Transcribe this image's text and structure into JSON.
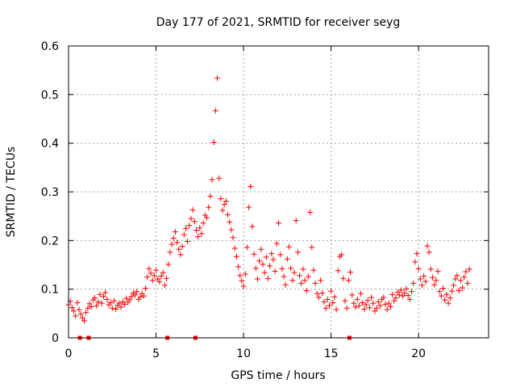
{
  "chart_data": {
    "type": "scatter",
    "title": "Day 177 of 2021, SRMTID for receiver seyg",
    "xlabel": "GPS time / hours",
    "ylabel": "SRMTID / TECUs",
    "xlim": [
      0,
      24
    ],
    "ylim": [
      0,
      0.6
    ],
    "xticks": [
      0,
      5,
      10,
      15,
      20
    ],
    "yticks": [
      0,
      0.1,
      0.2,
      0.3,
      0.4,
      0.5,
      0.6
    ],
    "xtick_labels": [
      "0",
      "5",
      "10",
      "15",
      "20"
    ],
    "ytick_labels": [
      "0",
      "0.1",
      "0.2",
      "0.3",
      "0.4",
      "0.5",
      "0.6"
    ],
    "grid": true,
    "marker": "+",
    "series_color": "#ff0000",
    "series": [
      {
        "name": "SRMTID",
        "points": [
          [
            0.0,
            0.068
          ],
          [
            0.1,
            0.075
          ],
          [
            0.2,
            0.062
          ],
          [
            0.3,
            0.055
          ],
          [
            0.4,
            0.045
          ],
          [
            0.5,
            0.072
          ],
          [
            0.6,
            0.058
          ],
          [
            0.7,
            0.049
          ],
          [
            0.8,
            0.041
          ],
          [
            0.9,
            0.035
          ],
          [
            1.0,
            0.052
          ],
          [
            1.1,
            0.061
          ],
          [
            1.2,
            0.07
          ],
          [
            1.3,
            0.064
          ],
          [
            1.4,
            0.078
          ],
          [
            1.5,
            0.082
          ],
          [
            1.6,
            0.066
          ],
          [
            1.7,
            0.074
          ],
          [
            1.8,
            0.089
          ],
          [
            1.9,
            0.071
          ],
          [
            2.0,
            0.085
          ],
          [
            2.1,
            0.093
          ],
          [
            2.2,
            0.079
          ],
          [
            2.3,
            0.068
          ],
          [
            2.4,
            0.072
          ],
          [
            2.5,
            0.061
          ],
          [
            2.6,
            0.076
          ],
          [
            2.7,
            0.059
          ],
          [
            2.8,
            0.067
          ],
          [
            2.9,
            0.071
          ],
          [
            3.0,
            0.063
          ],
          [
            3.1,
            0.074
          ],
          [
            3.2,
            0.069
          ],
          [
            3.3,
            0.081
          ],
          [
            3.4,
            0.073
          ],
          [
            3.5,
            0.078
          ],
          [
            3.6,
            0.085
          ],
          [
            3.7,
            0.092
          ],
          [
            3.8,
            0.088
          ],
          [
            3.9,
            0.095
          ],
          [
            4.0,
            0.079
          ],
          [
            4.1,
            0.084
          ],
          [
            4.2,
            0.091
          ],
          [
            4.3,
            0.086
          ],
          [
            4.4,
            0.102
          ],
          [
            4.5,
            0.125
          ],
          [
            4.6,
            0.142
          ],
          [
            4.7,
            0.133
          ],
          [
            4.8,
            0.118
          ],
          [
            4.9,
            0.128
          ],
          [
            5.0,
            0.139
          ],
          [
            5.1,
            0.121
          ],
          [
            5.2,
            0.115
          ],
          [
            5.3,
            0.127
          ],
          [
            5.4,
            0.134
          ],
          [
            5.5,
            0.108
          ],
          [
            5.6,
            0.122
          ],
          [
            5.7,
            0.151
          ],
          [
            5.8,
            0.176
          ],
          [
            5.9,
            0.192
          ],
          [
            6.0,
            0.205
          ],
          [
            6.1,
            0.218
          ],
          [
            6.2,
            0.196
          ],
          [
            6.3,
            0.182
          ],
          [
            6.4,
            0.171
          ],
          [
            6.5,
            0.188
          ],
          [
            6.6,
            0.212
          ],
          [
            6.7,
            0.225
          ],
          [
            6.8,
            0.198
          ],
          [
            6.9,
            0.231
          ],
          [
            7.0,
            0.245
          ],
          [
            7.1,
            0.263
          ],
          [
            7.2,
            0.239
          ],
          [
            7.3,
            0.221
          ],
          [
            7.4,
            0.208
          ],
          [
            7.5,
            0.226
          ],
          [
            7.6,
            0.214
          ],
          [
            7.7,
            0.236
          ],
          [
            7.8,
            0.252
          ],
          [
            7.9,
            0.247
          ],
          [
            8.0,
            0.268
          ],
          [
            8.1,
            0.291
          ],
          [
            8.2,
            0.325
          ],
          [
            8.3,
            0.402
          ],
          [
            8.4,
            0.467
          ],
          [
            8.5,
            0.534
          ],
          [
            8.6,
            0.328
          ],
          [
            8.7,
            0.286
          ],
          [
            8.8,
            0.262
          ],
          [
            8.9,
            0.274
          ],
          [
            9.0,
            0.281
          ],
          [
            9.1,
            0.253
          ],
          [
            9.2,
            0.238
          ],
          [
            9.3,
            0.222
          ],
          [
            9.4,
            0.206
          ],
          [
            9.5,
            0.184
          ],
          [
            9.6,
            0.167
          ],
          [
            9.7,
            0.146
          ],
          [
            9.8,
            0.128
          ],
          [
            9.9,
            0.117
          ],
          [
            10.0,
            0.106
          ],
          [
            10.1,
            0.131
          ],
          [
            10.2,
            0.186
          ],
          [
            10.3,
            0.268
          ],
          [
            10.4,
            0.311
          ],
          [
            10.5,
            0.229
          ],
          [
            10.6,
            0.172
          ],
          [
            10.7,
            0.143
          ],
          [
            10.8,
            0.121
          ],
          [
            10.9,
            0.158
          ],
          [
            11.0,
            0.182
          ],
          [
            11.1,
            0.151
          ],
          [
            11.2,
            0.134
          ],
          [
            11.3,
            0.166
          ],
          [
            11.4,
            0.122
          ],
          [
            11.5,
            0.148
          ],
          [
            11.6,
            0.173
          ],
          [
            11.7,
            0.161
          ],
          [
            11.8,
            0.137
          ],
          [
            11.9,
            0.194
          ],
          [
            12.0,
            0.236
          ],
          [
            12.1,
            0.171
          ],
          [
            12.2,
            0.142
          ],
          [
            12.3,
            0.126
          ],
          [
            12.4,
            0.109
          ],
          [
            12.5,
            0.162
          ],
          [
            12.6,
            0.187
          ],
          [
            12.7,
            0.143
          ],
          [
            12.8,
            0.118
          ],
          [
            12.9,
            0.134
          ],
          [
            13.0,
            0.241
          ],
          [
            13.1,
            0.176
          ],
          [
            13.2,
            0.128
          ],
          [
            13.3,
            0.112
          ],
          [
            13.4,
            0.141
          ],
          [
            13.5,
            0.118
          ],
          [
            13.6,
            0.097
          ],
          [
            13.7,
            0.126
          ],
          [
            13.8,
            0.258
          ],
          [
            13.9,
            0.186
          ],
          [
            14.0,
            0.139
          ],
          [
            14.1,
            0.112
          ],
          [
            14.2,
            0.091
          ],
          [
            14.3,
            0.083
          ],
          [
            14.4,
            0.118
          ],
          [
            14.5,
            0.092
          ],
          [
            14.6,
            0.074
          ],
          [
            14.7,
            0.061
          ],
          [
            14.8,
            0.079
          ],
          [
            14.9,
            0.066
          ],
          [
            15.0,
            0.096
          ],
          [
            15.1,
            0.072
          ],
          [
            15.2,
            0.084
          ],
          [
            15.3,
            0.058
          ],
          [
            15.4,
            0.138
          ],
          [
            15.5,
            0.167
          ],
          [
            15.6,
            0.171
          ],
          [
            15.7,
            0.122
          ],
          [
            15.8,
            0.076
          ],
          [
            15.9,
            0.061
          ],
          [
            16.0,
            0.118
          ],
          [
            16.1,
            0.135
          ],
          [
            16.2,
            0.088
          ],
          [
            16.3,
            0.071
          ],
          [
            16.4,
            0.063
          ],
          [
            16.5,
            0.079
          ],
          [
            16.6,
            0.066
          ],
          [
            16.7,
            0.091
          ],
          [
            16.8,
            0.072
          ],
          [
            16.9,
            0.059
          ],
          [
            17.0,
            0.068
          ],
          [
            17.1,
            0.077
          ],
          [
            17.2,
            0.062
          ],
          [
            17.3,
            0.083
          ],
          [
            17.4,
            0.071
          ],
          [
            17.5,
            0.055
          ],
          [
            17.6,
            0.061
          ],
          [
            17.7,
            0.074
          ],
          [
            17.8,
            0.066
          ],
          [
            17.9,
            0.079
          ],
          [
            18.0,
            0.083
          ],
          [
            18.1,
            0.069
          ],
          [
            18.2,
            0.058
          ],
          [
            18.3,
            0.071
          ],
          [
            18.4,
            0.064
          ],
          [
            18.5,
            0.089
          ],
          [
            18.6,
            0.076
          ],
          [
            18.7,
            0.082
          ],
          [
            18.8,
            0.094
          ],
          [
            18.9,
            0.088
          ],
          [
            19.0,
            0.098
          ],
          [
            19.1,
            0.086
          ],
          [
            19.2,
            0.092
          ],
          [
            19.3,
            0.101
          ],
          [
            19.4,
            0.087
          ],
          [
            19.5,
            0.079
          ],
          [
            19.6,
            0.095
          ],
          [
            19.7,
            0.112
          ],
          [
            19.8,
            0.156
          ],
          [
            19.9,
            0.173
          ],
          [
            20.0,
            0.142
          ],
          [
            20.1,
            0.121
          ],
          [
            20.2,
            0.108
          ],
          [
            20.3,
            0.127
          ],
          [
            20.4,
            0.116
          ],
          [
            20.5,
            0.189
          ],
          [
            20.6,
            0.176
          ],
          [
            20.7,
            0.141
          ],
          [
            20.8,
            0.124
          ],
          [
            20.9,
            0.109
          ],
          [
            21.0,
            0.118
          ],
          [
            21.1,
            0.137
          ],
          [
            21.2,
            0.095
          ],
          [
            21.3,
            0.086
          ],
          [
            21.4,
            0.102
          ],
          [
            21.5,
            0.078
          ],
          [
            21.6,
            0.089
          ],
          [
            21.7,
            0.071
          ],
          [
            21.8,
            0.082
          ],
          [
            21.9,
            0.096
          ],
          [
            22.0,
            0.108
          ],
          [
            22.1,
            0.121
          ],
          [
            22.2,
            0.128
          ],
          [
            22.3,
            0.097
          ],
          [
            22.4,
            0.118
          ],
          [
            22.5,
            0.103
          ],
          [
            22.6,
            0.125
          ],
          [
            22.7,
            0.136
          ],
          [
            22.8,
            0.112
          ],
          [
            22.9,
            0.141
          ]
        ]
      }
    ],
    "gap_markers_x": [
      0.65,
      1.15,
      5.65,
      7.25,
      16.05
    ]
  }
}
